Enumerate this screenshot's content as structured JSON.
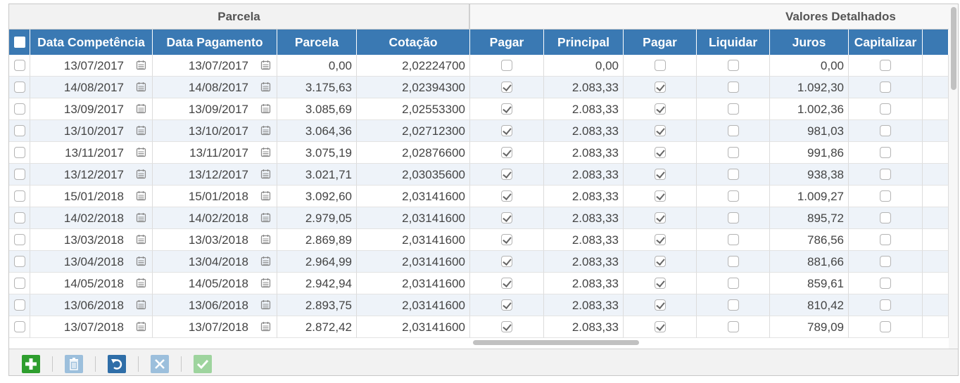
{
  "groups": {
    "parcela": "Parcela",
    "valores": "Valores Detalhados"
  },
  "headers": [
    "Data Competência",
    "Data Pagamento",
    "Parcela",
    "Cotação",
    "Pagar",
    "Principal",
    "Pagar",
    "Liquidar",
    "Juros",
    "Capitalizar"
  ],
  "rows": [
    {
      "comp": "13/07/2017",
      "pag": "13/07/2017",
      "parcela": "0,00",
      "cotacao": "2,02224700",
      "pagar1": false,
      "principal": "0,00",
      "pagar2": false,
      "liquidar": false,
      "juros": "0,00",
      "capitalizar": false
    },
    {
      "comp": "14/08/2017",
      "pag": "14/08/2017",
      "parcela": "3.175,63",
      "cotacao": "2,02394300",
      "pagar1": true,
      "principal": "2.083,33",
      "pagar2": true,
      "liquidar": false,
      "juros": "1.092,30",
      "capitalizar": false
    },
    {
      "comp": "13/09/2017",
      "pag": "13/09/2017",
      "parcela": "3.085,69",
      "cotacao": "2,02553300",
      "pagar1": true,
      "principal": "2.083,33",
      "pagar2": true,
      "liquidar": false,
      "juros": "1.002,36",
      "capitalizar": false
    },
    {
      "comp": "13/10/2017",
      "pag": "13/10/2017",
      "parcela": "3.064,36",
      "cotacao": "2,02712300",
      "pagar1": true,
      "principal": "2.083,33",
      "pagar2": true,
      "liquidar": false,
      "juros": "981,03",
      "capitalizar": false
    },
    {
      "comp": "13/11/2017",
      "pag": "13/11/2017",
      "parcela": "3.075,19",
      "cotacao": "2,02876600",
      "pagar1": true,
      "principal": "2.083,33",
      "pagar2": true,
      "liquidar": false,
      "juros": "991,86",
      "capitalizar": false
    },
    {
      "comp": "13/12/2017",
      "pag": "13/12/2017",
      "parcela": "3.021,71",
      "cotacao": "2,03035600",
      "pagar1": true,
      "principal": "2.083,33",
      "pagar2": true,
      "liquidar": false,
      "juros": "938,38",
      "capitalizar": false
    },
    {
      "comp": "15/01/2018",
      "pag": "15/01/2018",
      "parcela": "3.092,60",
      "cotacao": "2,03141600",
      "pagar1": true,
      "principal": "2.083,33",
      "pagar2": true,
      "liquidar": false,
      "juros": "1.009,27",
      "capitalizar": false
    },
    {
      "comp": "14/02/2018",
      "pag": "14/02/2018",
      "parcela": "2.979,05",
      "cotacao": "2,03141600",
      "pagar1": true,
      "principal": "2.083,33",
      "pagar2": true,
      "liquidar": false,
      "juros": "895,72",
      "capitalizar": false
    },
    {
      "comp": "13/03/2018",
      "pag": "13/03/2018",
      "parcela": "2.869,89",
      "cotacao": "2,03141600",
      "pagar1": true,
      "principal": "2.083,33",
      "pagar2": true,
      "liquidar": false,
      "juros": "786,56",
      "capitalizar": false
    },
    {
      "comp": "13/04/2018",
      "pag": "13/04/2018",
      "parcela": "2.964,99",
      "cotacao": "2,03141600",
      "pagar1": true,
      "principal": "2.083,33",
      "pagar2": true,
      "liquidar": false,
      "juros": "881,66",
      "capitalizar": false
    },
    {
      "comp": "14/05/2018",
      "pag": "14/05/2018",
      "parcela": "2.942,94",
      "cotacao": "2,03141600",
      "pagar1": true,
      "principal": "2.083,33",
      "pagar2": true,
      "liquidar": false,
      "juros": "859,61",
      "capitalizar": false
    },
    {
      "comp": "13/06/2018",
      "pag": "13/06/2018",
      "parcela": "2.893,75",
      "cotacao": "2,03141600",
      "pagar1": true,
      "principal": "2.083,33",
      "pagar2": true,
      "liquidar": false,
      "juros": "810,42",
      "capitalizar": false
    },
    {
      "comp": "13/07/2018",
      "pag": "13/07/2018",
      "parcela": "2.872,42",
      "cotacao": "2,03141600",
      "pagar1": true,
      "principal": "2.083,33",
      "pagar2": true,
      "liquidar": false,
      "juros": "789,09",
      "capitalizar": false
    }
  ],
  "toolbar": [
    {
      "name": "add-button",
      "icon": "plus-icon",
      "color": "#2e9e2e",
      "enabled": true
    },
    {
      "name": "delete-button",
      "icon": "trash-icon",
      "color": "#9cbfdc",
      "enabled": false
    },
    {
      "name": "undo-button",
      "icon": "undo-icon",
      "color": "#2f6ea8",
      "enabled": true
    },
    {
      "name": "cancel-button",
      "icon": "close-icon",
      "color": "#9cbfdc",
      "enabled": false
    },
    {
      "name": "confirm-button",
      "icon": "check-icon",
      "color": "#9ed49e",
      "enabled": false
    }
  ],
  "colors": {
    "header": "#3a79b3",
    "row_alt": "#eef3f9"
  }
}
